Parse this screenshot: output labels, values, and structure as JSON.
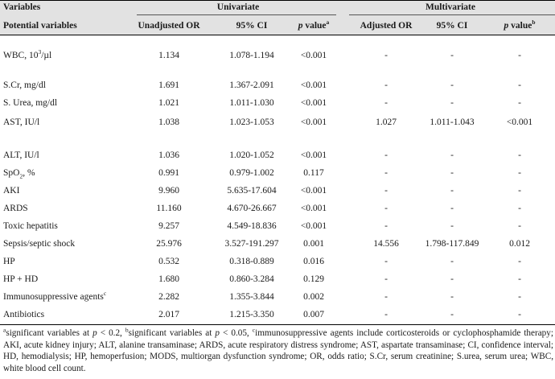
{
  "header": {
    "col_variables": "Variables",
    "group_univariate": "Univariate",
    "group_multivariate": "Multivariate",
    "sub_potential": "Potential variables",
    "sub_unadj_or": "Unadjusted OR",
    "sub_ci1": "95% CI",
    "sub_p1_main": "p",
    "sub_p1_rest": " value",
    "sub_p1_sup": "a",
    "sub_adj_or": "Adjusted OR",
    "sub_ci2": "95% CI",
    "sub_p2_main": "p",
    "sub_p2_rest": " value",
    "sub_p2_sup": "b"
  },
  "rows": [
    {
      "var": "WBC, 10",
      "var_sup": "3",
      "var_tail": "/µl",
      "uor": "1.134",
      "ci": "1.078-1.194",
      "p": "<0.001",
      "aor": "-",
      "ci2": "-",
      "p2": "-"
    },
    {
      "var": "S.Cr, mg/dl",
      "uor": "1.691",
      "ci": "1.367-2.091",
      "p": "<0.001",
      "aor": "-",
      "ci2": "-",
      "p2": "-"
    },
    {
      "var": "S. Urea, mg/dl",
      "uor": "1.021",
      "ci": "1.011-1.030",
      "p": "<0.001",
      "aor": "-",
      "ci2": "-",
      "p2": "-"
    },
    {
      "var": "AST, IU/l",
      "uor": "1.038",
      "ci": "1.023-1.053",
      "p": "<0.001",
      "aor": "1.027",
      "ci2": "1.011-1.043",
      "p2": "<0.001"
    },
    {
      "var": "ALT, IU/l",
      "uor": "1.036",
      "ci": "1.020-1.052",
      "p": "<0.001",
      "aor": "-",
      "ci2": "-",
      "p2": "-"
    },
    {
      "var": "SpO",
      "var_sub": "2",
      "var_tail": ", %",
      "uor": "0.991",
      "ci": "0.979-1.002",
      "p": "0.117",
      "aor": "-",
      "ci2": "-",
      "p2": "-"
    },
    {
      "var": "AKI",
      "uor": "9.960",
      "ci": "5.635-17.604",
      "p": "<0.001",
      "aor": "-",
      "ci2": "-",
      "p2": "-"
    },
    {
      "var": "ARDS",
      "uor": "11.160",
      "ci": "4.670-26.667",
      "p": "<0.001",
      "aor": "-",
      "ci2": "-",
      "p2": "-"
    },
    {
      "var": "Toxic hepatitis",
      "uor": "9.257",
      "ci": "4.549-18.836",
      "p": "<0.001",
      "aor": "-",
      "ci2": "-",
      "p2": "-"
    },
    {
      "var": "Sepsis/septic shock",
      "uor": "25.976",
      "ci": "3.527-191.297",
      "p": "0.001",
      "aor": "14.556",
      "ci2": "1.798-117.849",
      "p2": "0.012"
    },
    {
      "var": "HP",
      "uor": "0.532",
      "ci": "0.318-0.889",
      "p": "0.016",
      "aor": "-",
      "ci2": "-",
      "p2": "-"
    },
    {
      "var": "HP + HD",
      "uor": "1.680",
      "ci": "0.860-3.284",
      "p": "0.129",
      "aor": "-",
      "ci2": "-",
      "p2": "-"
    },
    {
      "var": "Immunosuppressive agents",
      "var_sup": "c",
      "uor": "2.282",
      "ci": "1.355-3.844",
      "p": "0.002",
      "aor": "-",
      "ci2": "-",
      "p2": "-"
    },
    {
      "var": "Antibiotics",
      "uor": "2.017",
      "ci": "1.215-3.350",
      "p": "0.007",
      "aor": "-",
      "ci2": "-",
      "p2": "-"
    }
  ],
  "footnote": {
    "a_sup": "a",
    "a_text": "significant variables at ",
    "a_p": "p",
    "a_tail": " < 0.2, ",
    "b_sup": "b",
    "b_text": "significant variables at ",
    "b_p": "p",
    "b_tail": " < 0.05, ",
    "c_sup": "c",
    "c_text": "immunosuppressive agents include corticosteroids or cyclophosphamide therapy; AKI, acute kidney injury; ALT, alanine transaminase; ARDS, acute respiratory distress syndrome; AST, aspartate transaminase; CI, confidence interval; HD, hemodialysis; HP, hemoperfusion; MODS, multiorgan dysfunction syndrome; OR, odds ratio; S.Cr, serum creatinine; S.urea, serum urea; WBC, white blood cell count."
  }
}
